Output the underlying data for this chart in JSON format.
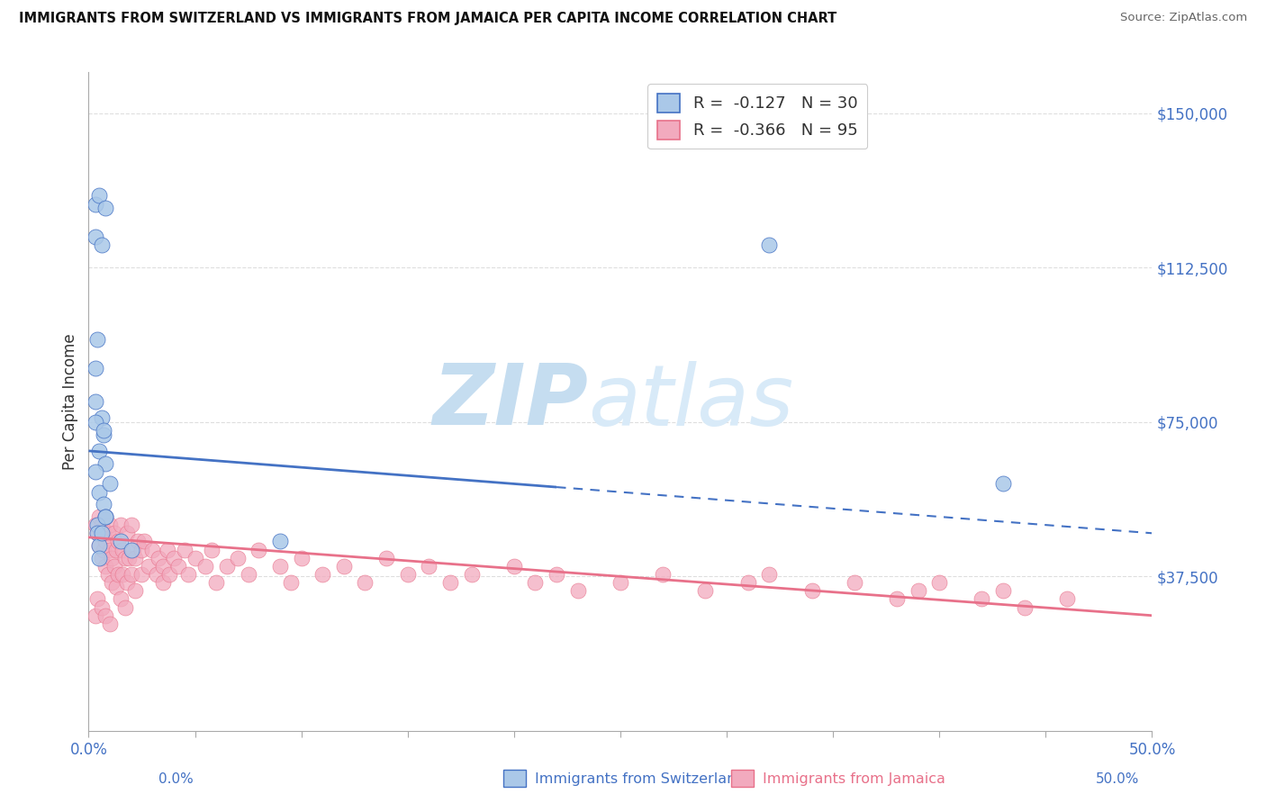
{
  "title": "IMMIGRANTS FROM SWITZERLAND VS IMMIGRANTS FROM JAMAICA PER CAPITA INCOME CORRELATION CHART",
  "source": "Source: ZipAtlas.com",
  "ylabel": "Per Capita Income",
  "ytick_vals": [
    0,
    37500,
    75000,
    112500,
    150000
  ],
  "ytick_labels": [
    "",
    "$37,500",
    "$75,000",
    "$112,500",
    "$150,000"
  ],
  "xtick_vals": [
    0.0,
    0.5
  ],
  "xtick_labels": [
    "0.0%",
    "50.0%"
  ],
  "xlim": [
    0.0,
    0.5
  ],
  "ylim": [
    0,
    160000
  ],
  "legend_text1": "R =  -0.127   N = 30",
  "legend_text2": "R =  -0.366   N = 95",
  "color_swiss": "#aac8e8",
  "color_jamaica": "#f2aabe",
  "color_swiss_line": "#4472c4",
  "color_jamaica_line": "#e8718a",
  "color_grid": "#d0d0d0",
  "watermark_zip": "#b8d4ee",
  "watermark_atlas": "#c8dff0",
  "swiss_x": [
    0.003,
    0.005,
    0.008,
    0.003,
    0.006,
    0.004,
    0.003,
    0.003,
    0.006,
    0.007,
    0.005,
    0.008,
    0.003,
    0.005,
    0.007,
    0.008,
    0.004,
    0.004,
    0.005,
    0.006,
    0.008,
    0.01,
    0.015,
    0.02,
    0.09,
    0.32,
    0.43,
    0.005,
    0.003,
    0.007
  ],
  "swiss_y": [
    128000,
    130000,
    127000,
    120000,
    118000,
    95000,
    88000,
    80000,
    76000,
    72000,
    68000,
    65000,
    63000,
    58000,
    55000,
    52000,
    50000,
    48000,
    45000,
    48000,
    52000,
    60000,
    46000,
    44000,
    46000,
    118000,
    60000,
    42000,
    75000,
    73000
  ],
  "jam_x": [
    0.003,
    0.004,
    0.005,
    0.005,
    0.006,
    0.006,
    0.007,
    0.007,
    0.008,
    0.008,
    0.008,
    0.009,
    0.009,
    0.01,
    0.01,
    0.011,
    0.011,
    0.012,
    0.012,
    0.013,
    0.013,
    0.014,
    0.014,
    0.015,
    0.015,
    0.016,
    0.016,
    0.017,
    0.017,
    0.018,
    0.018,
    0.019,
    0.02,
    0.02,
    0.021,
    0.022,
    0.022,
    0.023,
    0.025,
    0.025,
    0.026,
    0.028,
    0.03,
    0.032,
    0.033,
    0.035,
    0.035,
    0.037,
    0.038,
    0.04,
    0.042,
    0.045,
    0.047,
    0.05,
    0.055,
    0.058,
    0.06,
    0.065,
    0.07,
    0.075,
    0.08,
    0.09,
    0.095,
    0.1,
    0.11,
    0.12,
    0.13,
    0.14,
    0.15,
    0.16,
    0.17,
    0.18,
    0.2,
    0.21,
    0.22,
    0.23,
    0.25,
    0.27,
    0.29,
    0.31,
    0.32,
    0.34,
    0.36,
    0.38,
    0.39,
    0.4,
    0.42,
    0.43,
    0.44,
    0.46,
    0.003,
    0.004,
    0.006,
    0.008,
    0.01
  ],
  "jam_y": [
    50000,
    48000,
    52000,
    45000,
    50000,
    42000,
    48000,
    44000,
    52000,
    40000,
    46000,
    48000,
    38000,
    44000,
    50000,
    42000,
    36000,
    48000,
    40000,
    44000,
    35000,
    46000,
    38000,
    50000,
    32000,
    44000,
    38000,
    42000,
    30000,
    48000,
    36000,
    42000,
    50000,
    38000,
    44000,
    42000,
    34000,
    46000,
    44000,
    38000,
    46000,
    40000,
    44000,
    38000,
    42000,
    40000,
    36000,
    44000,
    38000,
    42000,
    40000,
    44000,
    38000,
    42000,
    40000,
    44000,
    36000,
    40000,
    42000,
    38000,
    44000,
    40000,
    36000,
    42000,
    38000,
    40000,
    36000,
    42000,
    38000,
    40000,
    36000,
    38000,
    40000,
    36000,
    38000,
    34000,
    36000,
    38000,
    34000,
    36000,
    38000,
    34000,
    36000,
    32000,
    34000,
    36000,
    32000,
    34000,
    30000,
    32000,
    28000,
    32000,
    30000,
    28000,
    26000
  ]
}
